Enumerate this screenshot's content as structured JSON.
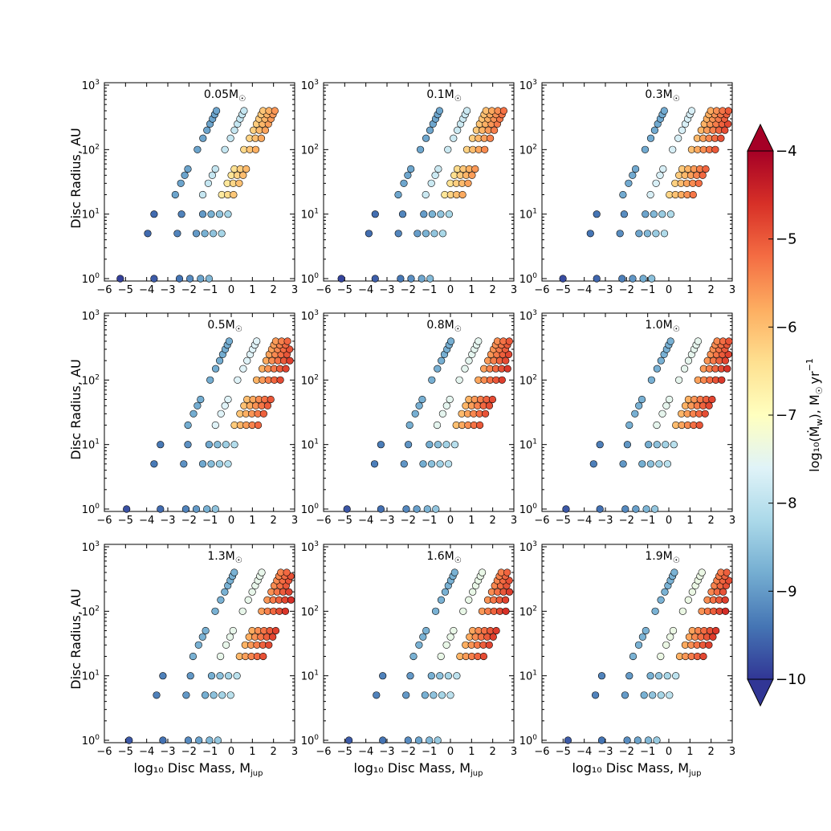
{
  "chart_data": {
    "type": "scatter",
    "layout": "3x3 grid",
    "shared": {
      "xlabel": "log₁₀ Disc Mass, M",
      "xlabel_sub": "jup",
      "ylabel": "Disc Radius, AU",
      "xlim": [
        -6,
        3
      ],
      "ylim": [
        1,
        1000
      ],
      "yscale": "log",
      "xticks": [
        "−6",
        "−5",
        "−4",
        "−3",
        "−2",
        "−1",
        "0",
        "1",
        "2",
        "3"
      ],
      "xtick_values": [
        -6,
        -5,
        -4,
        -3,
        -2,
        -1,
        0,
        1,
        2,
        3
      ],
      "ytick_values": [
        1,
        10,
        100,
        1000
      ],
      "ytick_base": "10",
      "ytick_exps": [
        "0",
        "1",
        "2",
        "3"
      ],
      "grid": false
    },
    "colorbar": {
      "label": "log₁₀(Ṁ",
      "label_sub": "w",
      "label_tail": "), M",
      "label_unit": "yr",
      "label_unit_exp": "−1",
      "range": [
        -10,
        -4
      ],
      "ticks": [
        "−4",
        "−5",
        "−6",
        "−7",
        "−8",
        "−9",
        "−10"
      ],
      "tick_values": [
        -4,
        -5,
        -6,
        -7,
        -8,
        -9,
        -10
      ],
      "extend": "both",
      "cmap": "RdYlBu_r",
      "colors": [
        "#313695",
        "#4575b4",
        "#74add1",
        "#abd9e9",
        "#e0f3f8",
        "#ffffbf",
        "#fee090",
        "#fdae61",
        "#f46d43",
        "#d73027",
        "#a50026"
      ]
    },
    "radii": [
      1,
      5,
      10,
      20,
      30,
      40,
      50,
      100,
      150,
      200,
      250,
      300,
      350,
      400
    ],
    "panels": [
      {
        "title": "0.05M",
        "title_sub": "☉",
        "offset": -1.5,
        "n": 3,
        "boost": 0.0,
        "lowRadius": [
          1,
          5,
          10
        ]
      },
      {
        "title": "0.1M",
        "title_sub": "☉",
        "offset": -1.2,
        "n": 4,
        "boost": 0.2,
        "lowRadius": [
          1,
          5,
          10
        ]
      },
      {
        "title": "0.3M",
        "title_sub": "☉",
        "offset": -0.7,
        "n": 5,
        "boost": 0.7,
        "lowRadius": [
          1,
          5,
          10
        ]
      },
      {
        "title": "0.5M",
        "title_sub": "☉",
        "offset": -0.5,
        "n": 5,
        "boost": 1.0,
        "lowRadius": [
          1,
          5,
          10,
          20
        ]
      },
      {
        "title": "0.8M",
        "title_sub": "☉",
        "offset": -0.3,
        "n": 5,
        "boost": 1.3,
        "lowRadius": [
          1,
          5,
          10,
          20
        ]
      },
      {
        "title": "1.0M",
        "title_sub": "☉",
        "offset": -0.2,
        "n": 5,
        "boost": 1.4,
        "lowRadius": [
          1,
          5,
          10,
          20
        ]
      },
      {
        "title": "1.3M",
        "title_sub": "☉",
        "offset": -0.1,
        "n": 5,
        "boost": 1.5,
        "lowRadius": [
          1,
          5,
          10,
          20
        ]
      },
      {
        "title": "1.6M",
        "title_sub": "☉",
        "offset": 0.0,
        "n": 5,
        "boost": 1.6,
        "lowRadius": [
          1,
          5,
          10,
          20,
          30
        ]
      },
      {
        "title": "1.9M",
        "title_sub": "☉",
        "offset": 0.1,
        "n": 5,
        "boost": 1.7,
        "lowRadius": [
          1,
          5,
          10,
          20,
          30
        ]
      }
    ]
  }
}
